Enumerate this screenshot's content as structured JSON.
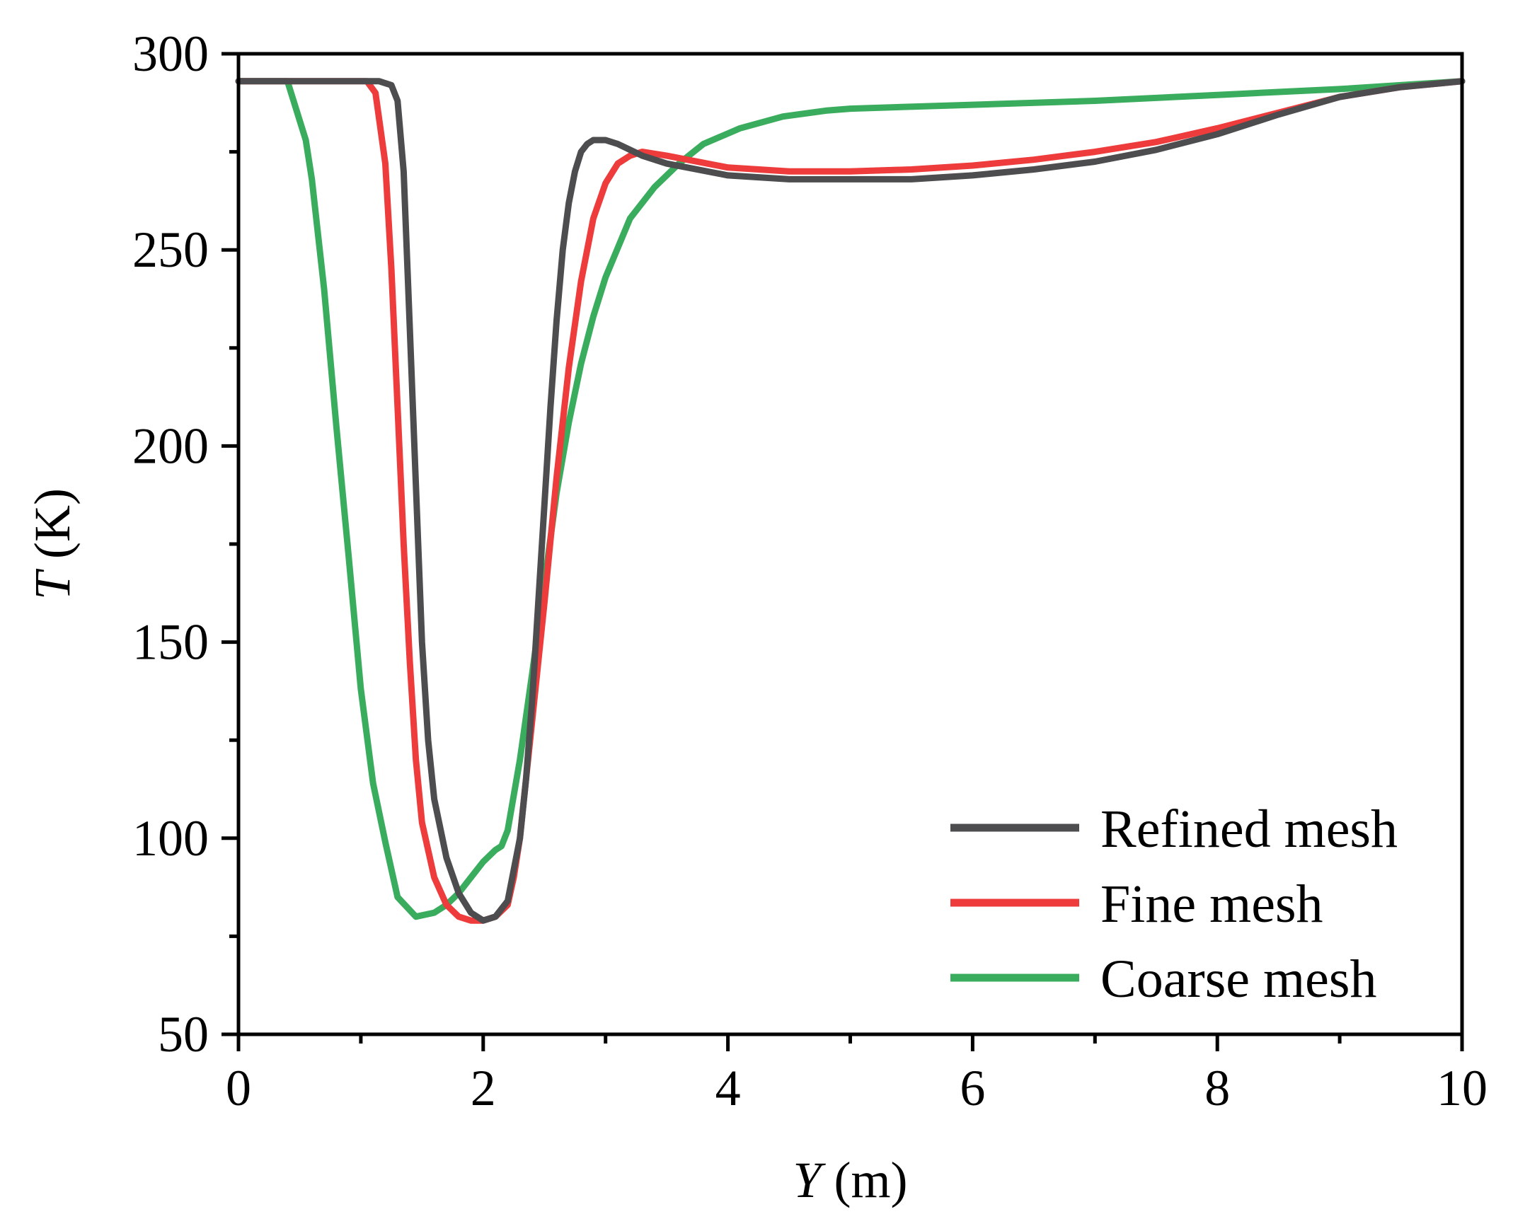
{
  "chart_data": {
    "type": "line",
    "title": "",
    "xlabel": {
      "var": "Y",
      "unit": " (m)"
    },
    "ylabel": {
      "var": "T",
      "unit": " (K)"
    },
    "xlim": [
      0,
      10
    ],
    "ylim": [
      50,
      300
    ],
    "xticks": [
      0,
      2,
      4,
      6,
      8,
      10
    ],
    "xtick_labels": [
      "0",
      "2",
      "4",
      "6",
      "8",
      "10"
    ],
    "yticks": [
      50,
      100,
      150,
      200,
      250,
      300
    ],
    "ytick_labels": [
      "50",
      "100",
      "150",
      "200",
      "250",
      "300"
    ],
    "legend_position": "bottom-right",
    "grid": false,
    "series": [
      {
        "name": "Refined mesh",
        "color": "#4d4d4f",
        "x": [
          0,
          1.0,
          1.15,
          1.25,
          1.3,
          1.35,
          1.4,
          1.45,
          1.5,
          1.55,
          1.6,
          1.7,
          1.8,
          1.9,
          2.0,
          2.1,
          2.2,
          2.3,
          2.35,
          2.4,
          2.45,
          2.5,
          2.55,
          2.6,
          2.65,
          2.7,
          2.75,
          2.8,
          2.85,
          2.9,
          3.0,
          3.1,
          3.3,
          3.5,
          4.0,
          4.5,
          5.0,
          5.5,
          6.0,
          6.5,
          7.0,
          7.5,
          8.0,
          8.5,
          9.0,
          9.5,
          10.0
        ],
        "y": [
          293,
          293,
          293,
          292,
          288,
          270,
          230,
          190,
          150,
          125,
          110,
          95,
          86,
          81,
          79,
          80,
          84,
          100,
          115,
          135,
          160,
          185,
          210,
          232,
          250,
          262,
          270,
          275,
          277,
          278,
          278,
          277,
          274,
          272,
          269,
          268,
          268,
          268,
          269,
          270.5,
          272.5,
          275.5,
          279.5,
          284.5,
          289,
          291.5,
          293
        ]
      },
      {
        "name": "Fine mesh",
        "color": "#ee3b3b",
        "x": [
          0,
          1.05,
          1.12,
          1.2,
          1.25,
          1.3,
          1.35,
          1.4,
          1.45,
          1.5,
          1.6,
          1.7,
          1.8,
          1.9,
          2.0,
          2.1,
          2.2,
          2.25,
          2.3,
          2.35,
          2.4,
          2.5,
          2.6,
          2.7,
          2.8,
          2.9,
          3.0,
          3.1,
          3.2,
          3.3,
          3.5,
          4.0,
          4.5,
          5.0,
          5.5,
          6.0,
          6.5,
          7.0,
          7.5,
          8.0,
          8.5,
          9.0,
          9.5,
          10.0
        ],
        "y": [
          293,
          293,
          290,
          272,
          245,
          210,
          175,
          145,
          120,
          104,
          90,
          83,
          80,
          79,
          79,
          80,
          83,
          90,
          100,
          115,
          130,
          160,
          192,
          220,
          242,
          258,
          267,
          272,
          274,
          275,
          274,
          271,
          270,
          270,
          270.5,
          271.5,
          273,
          275,
          277.5,
          281,
          285,
          289,
          291.5,
          293
        ]
      },
      {
        "name": "Coarse mesh",
        "color": "#3aac5d",
        "x": [
          0,
          0.4,
          0.55,
          0.6,
          0.7,
          0.8,
          0.9,
          1.0,
          1.1,
          1.2,
          1.3,
          1.45,
          1.6,
          1.7,
          1.8,
          1.9,
          2.0,
          2.1,
          2.15,
          2.2,
          2.3,
          2.4,
          2.5,
          2.6,
          2.7,
          2.8,
          2.9,
          3.0,
          3.2,
          3.4,
          3.6,
          3.8,
          4.1,
          4.45,
          4.8,
          5.0,
          6.0,
          7.0,
          8.0,
          9.0,
          10.0
        ],
        "y": [
          293,
          293,
          278,
          268,
          240,
          205,
          172,
          138,
          114,
          99,
          85,
          80,
          81,
          83,
          86,
          90,
          94,
          97,
          98,
          102,
          120,
          142,
          165,
          188,
          206,
          221,
          233,
          243,
          258,
          266,
          272,
          277,
          281,
          284,
          285.5,
          286,
          287,
          288,
          289.5,
          291,
          293
        ]
      }
    ]
  }
}
